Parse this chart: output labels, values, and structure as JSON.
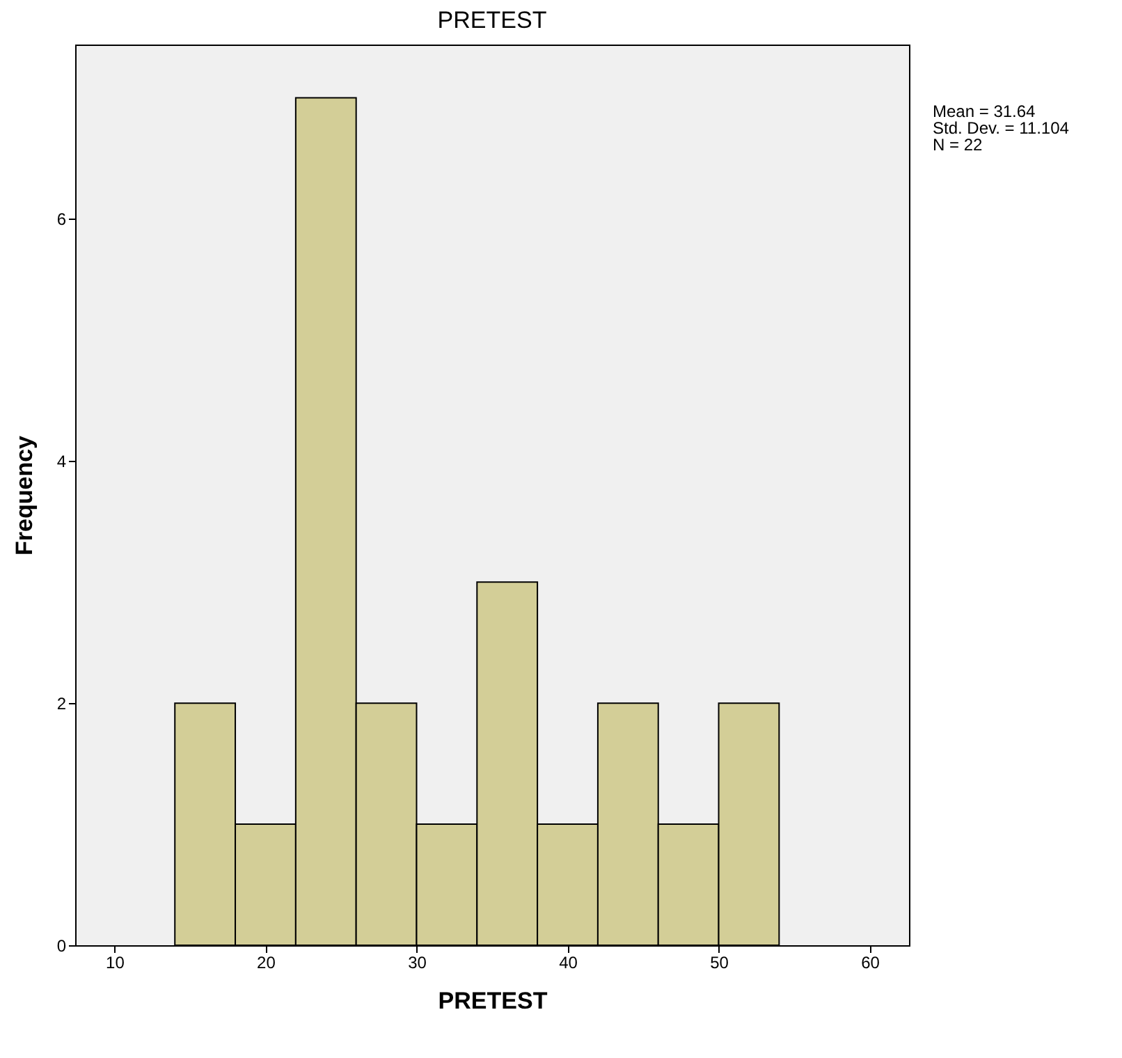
{
  "chart_data": {
    "type": "histogram",
    "title": "PRETEST",
    "xlabel": "PRETEST",
    "ylabel": "Frequency",
    "bins": [
      14,
      18,
      22,
      26,
      30,
      34,
      38,
      42,
      46,
      50,
      54
    ],
    "values": [
      2,
      1,
      7,
      2,
      1,
      3,
      1,
      2,
      1,
      2
    ],
    "color": "#d3ce97",
    "xlim": [
      7.4,
      62.6
    ],
    "xticks": [
      10,
      20,
      30,
      40,
      50,
      60
    ],
    "ylim": [
      0,
      7.44
    ],
    "yticks": [
      0,
      2,
      4,
      6
    ],
    "grid": false,
    "annotations": [
      "Mean = 31.64",
      "Std. Dev. = 11.104",
      "N = 22"
    ]
  }
}
